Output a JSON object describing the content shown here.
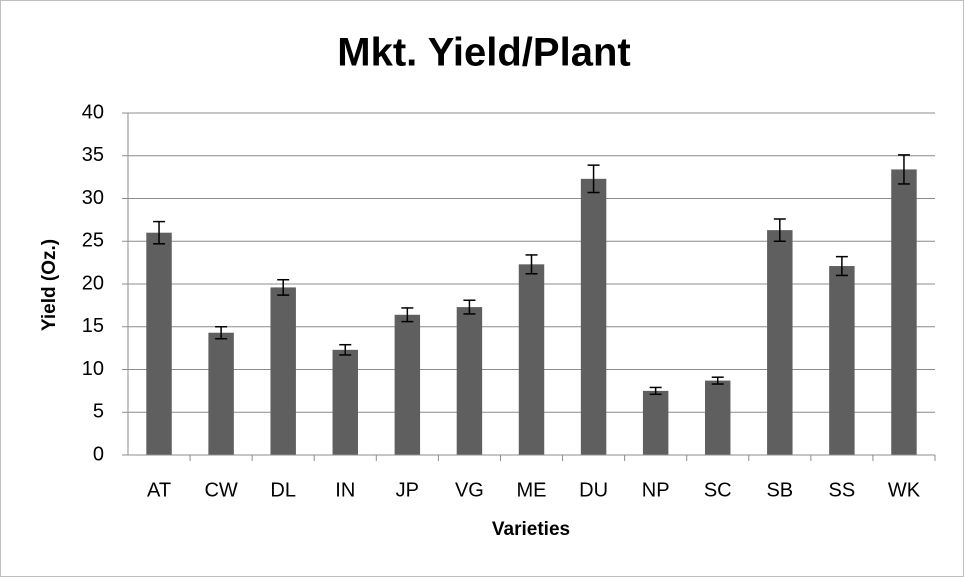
{
  "chart_data": {
    "type": "bar",
    "title": "Mkt. Yield/Plant",
    "x_label": "Varieties",
    "y_label": "Yield (Oz.)",
    "categories": [
      "AT",
      "CW",
      "DL",
      "IN",
      "JP",
      "VG",
      "ME",
      "DU",
      "NP",
      "SC",
      "SB",
      "SS",
      "WK"
    ],
    "values": [
      26.0,
      14.3,
      19.6,
      12.3,
      16.4,
      17.3,
      22.3,
      32.3,
      7.5,
      8.7,
      26.3,
      22.1,
      33.4
    ],
    "errors": [
      1.3,
      0.7,
      0.9,
      0.6,
      0.8,
      0.8,
      1.1,
      1.6,
      0.4,
      0.4,
      1.3,
      1.1,
      1.7
    ],
    "color": "#5f5f5f",
    "ylim": [
      0,
      40
    ],
    "yticks": [
      0,
      5,
      10,
      15,
      20,
      25,
      30,
      35,
      40
    ],
    "grid": true
  }
}
